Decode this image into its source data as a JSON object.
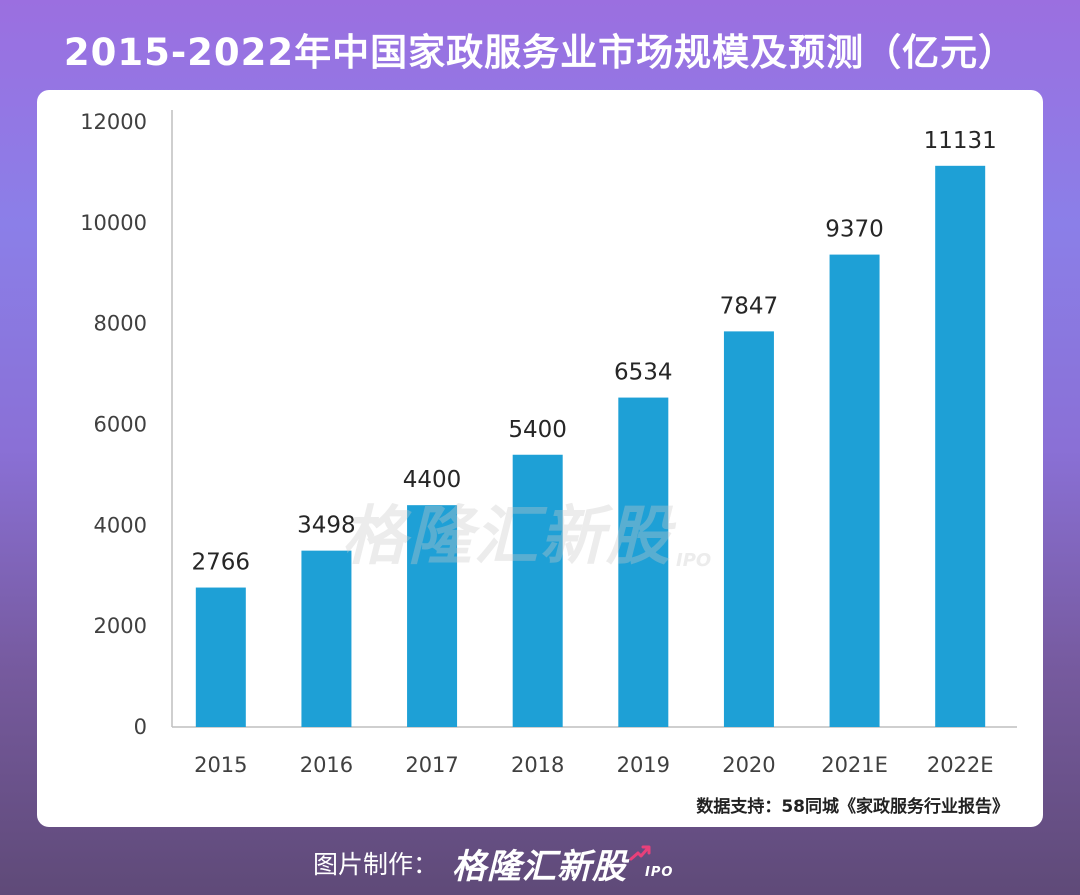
{
  "title": "2015-2022年中国家政服务业市场规模及预测（亿元）",
  "source": "数据支持：58同城《家政服务行业报告》",
  "credit": {
    "label": "图片制作：",
    "brand": "格隆汇新股",
    "ipo": "IPO"
  },
  "watermark": {
    "text": "格隆汇新股",
    "ipo": "IPO"
  },
  "colors": {
    "bar": "#1ea0d6",
    "axis": "#bfbfbf",
    "tick_text": "#404040",
    "label_text": "#262626"
  },
  "chart_data": {
    "type": "bar",
    "title": "2015-2022年中国家政服务业市场规模及预测（亿元）",
    "categories": [
      "2015",
      "2016",
      "2017",
      "2018",
      "2019",
      "2020",
      "2021E",
      "2022E"
    ],
    "values": [
      2766,
      3498,
      4400,
      5400,
      6534,
      7847,
      9370,
      11131
    ],
    "value_labels": [
      "2766",
      "3498",
      "4400",
      "5400",
      "6534",
      "7847",
      "9370",
      "11131"
    ],
    "yticks": [
      0,
      2000,
      4000,
      6000,
      8000,
      10000,
      12000
    ],
    "ytick_labels": [
      "0",
      "2000",
      "4000",
      "6000",
      "8000",
      "10000",
      "12000"
    ],
    "ylim": [
      0,
      12000
    ],
    "xlabel": "",
    "ylabel": "",
    "grid": false,
    "legend": "none"
  }
}
